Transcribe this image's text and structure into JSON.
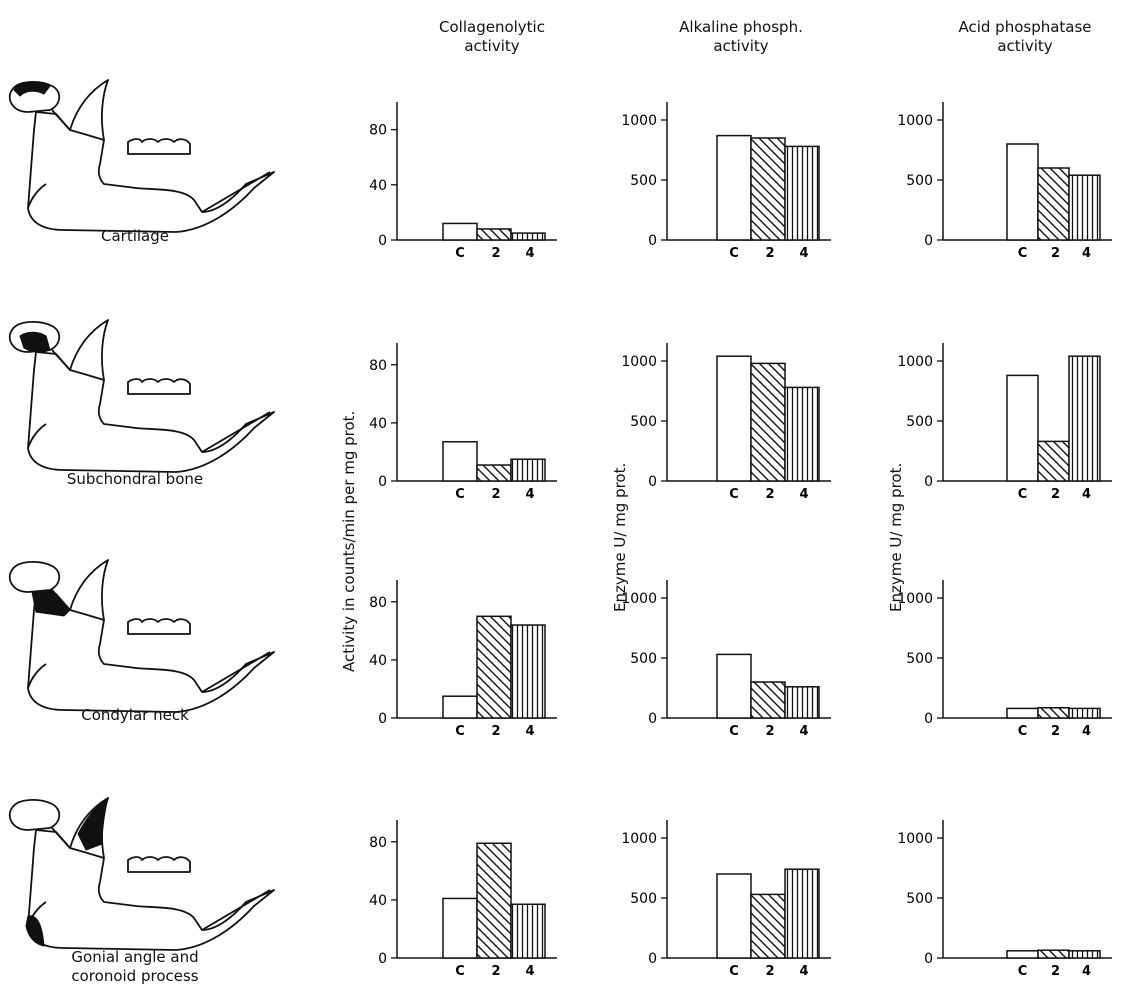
{
  "columns": [
    {
      "title_line1": "Collagenolytic",
      "title_line2": "activity"
    },
    {
      "title_line1": "Alkaline phosph.",
      "title_line2": "activity"
    },
    {
      "title_line1": "Acid phosphatase",
      "title_line2": "activity"
    }
  ],
  "y_axis_labels": {
    "collagenolytic": "Activity in counts/min per mg prot.",
    "alkaline": "Enzyme U/ mg prot.",
    "acid": "Enzyme U/ mg prot."
  },
  "rows": [
    {
      "label_line1": "Cartilage",
      "label_line2": ""
    },
    {
      "label_line1": "Subchondral bone",
      "label_line2": ""
    },
    {
      "label_line1": "Condylar neck",
      "label_line2": ""
    },
    {
      "label_line1": "Gonial angle and",
      "label_line2": "coronoid process"
    }
  ],
  "chart_data": [
    {
      "type": "bar",
      "row": "Cartilage",
      "column": "Collagenolytic activity",
      "categories": [
        "C",
        "2",
        "4"
      ],
      "values": [
        12,
        8,
        5
      ],
      "ylim": [
        0,
        100
      ],
      "yticks": [
        0,
        40,
        80
      ]
    },
    {
      "type": "bar",
      "row": "Cartilage",
      "column": "Alkaline phosph. activity",
      "categories": [
        "C",
        "2",
        "4"
      ],
      "values": [
        870,
        850,
        780
      ],
      "ylim": [
        0,
        1150
      ],
      "yticks": [
        0,
        500,
        1000
      ]
    },
    {
      "type": "bar",
      "row": "Cartilage",
      "column": "Acid phosphatase activity",
      "categories": [
        "C",
        "2",
        "4"
      ],
      "values": [
        800,
        600,
        540
      ],
      "ylim": [
        0,
        1150
      ],
      "yticks": [
        0,
        500,
        1000
      ]
    },
    {
      "type": "bar",
      "row": "Subchondral bone",
      "column": "Collagenolytic activity",
      "categories": [
        "C",
        "2",
        "4"
      ],
      "values": [
        27,
        11,
        15
      ],
      "ylim": [
        0,
        95
      ],
      "yticks": [
        0,
        40,
        80
      ]
    },
    {
      "type": "bar",
      "row": "Subchondral bone",
      "column": "Alkaline phosph. activity",
      "categories": [
        "C",
        "2",
        "4"
      ],
      "values": [
        1040,
        980,
        780
      ],
      "ylim": [
        0,
        1150
      ],
      "yticks": [
        0,
        500,
        1000
      ]
    },
    {
      "type": "bar",
      "row": "Subchondral bone",
      "column": "Acid phosphatase activity",
      "categories": [
        "C",
        "2",
        "4"
      ],
      "values": [
        880,
        330,
        1040
      ],
      "ylim": [
        0,
        1150
      ],
      "yticks": [
        0,
        500,
        1000
      ]
    },
    {
      "type": "bar",
      "row": "Condylar neck",
      "column": "Collagenolytic activity",
      "categories": [
        "C",
        "2",
        "4"
      ],
      "values": [
        15,
        70,
        64
      ],
      "ylim": [
        0,
        95
      ],
      "yticks": [
        0,
        40,
        80
      ]
    },
    {
      "type": "bar",
      "row": "Condylar neck",
      "column": "Alkaline phosph. activity",
      "categories": [
        "C",
        "2",
        "4"
      ],
      "values": [
        530,
        300,
        260
      ],
      "ylim": [
        0,
        1150
      ],
      "yticks": [
        0,
        500,
        1000
      ]
    },
    {
      "type": "bar",
      "row": "Condylar neck",
      "column": "Acid phosphatase activity",
      "categories": [
        "C",
        "2",
        "4"
      ],
      "values": [
        80,
        85,
        80
      ],
      "ylim": [
        0,
        1150
      ],
      "yticks": [
        0,
        500,
        1000
      ]
    },
    {
      "type": "bar",
      "row": "Gonial angle and coronoid process",
      "column": "Collagenolytic activity",
      "categories": [
        "C",
        "2",
        "4"
      ],
      "values": [
        41,
        79,
        37
      ],
      "ylim": [
        0,
        95
      ],
      "yticks": [
        0,
        40,
        80
      ]
    },
    {
      "type": "bar",
      "row": "Gonial angle and coronoid process",
      "column": "Alkaline phosph. activity",
      "categories": [
        "C",
        "2",
        "4"
      ],
      "values": [
        700,
        530,
        740
      ],
      "ylim": [
        0,
        1150
      ],
      "yticks": [
        0,
        500,
        1000
      ]
    },
    {
      "type": "bar",
      "row": "Gonial angle and coronoid process",
      "column": "Acid phosphatase activity",
      "categories": [
        "C",
        "2",
        "4"
      ],
      "values": [
        60,
        65,
        60
      ],
      "ylim": [
        0,
        1150
      ],
      "yticks": [
        0,
        500,
        1000
      ]
    }
  ]
}
